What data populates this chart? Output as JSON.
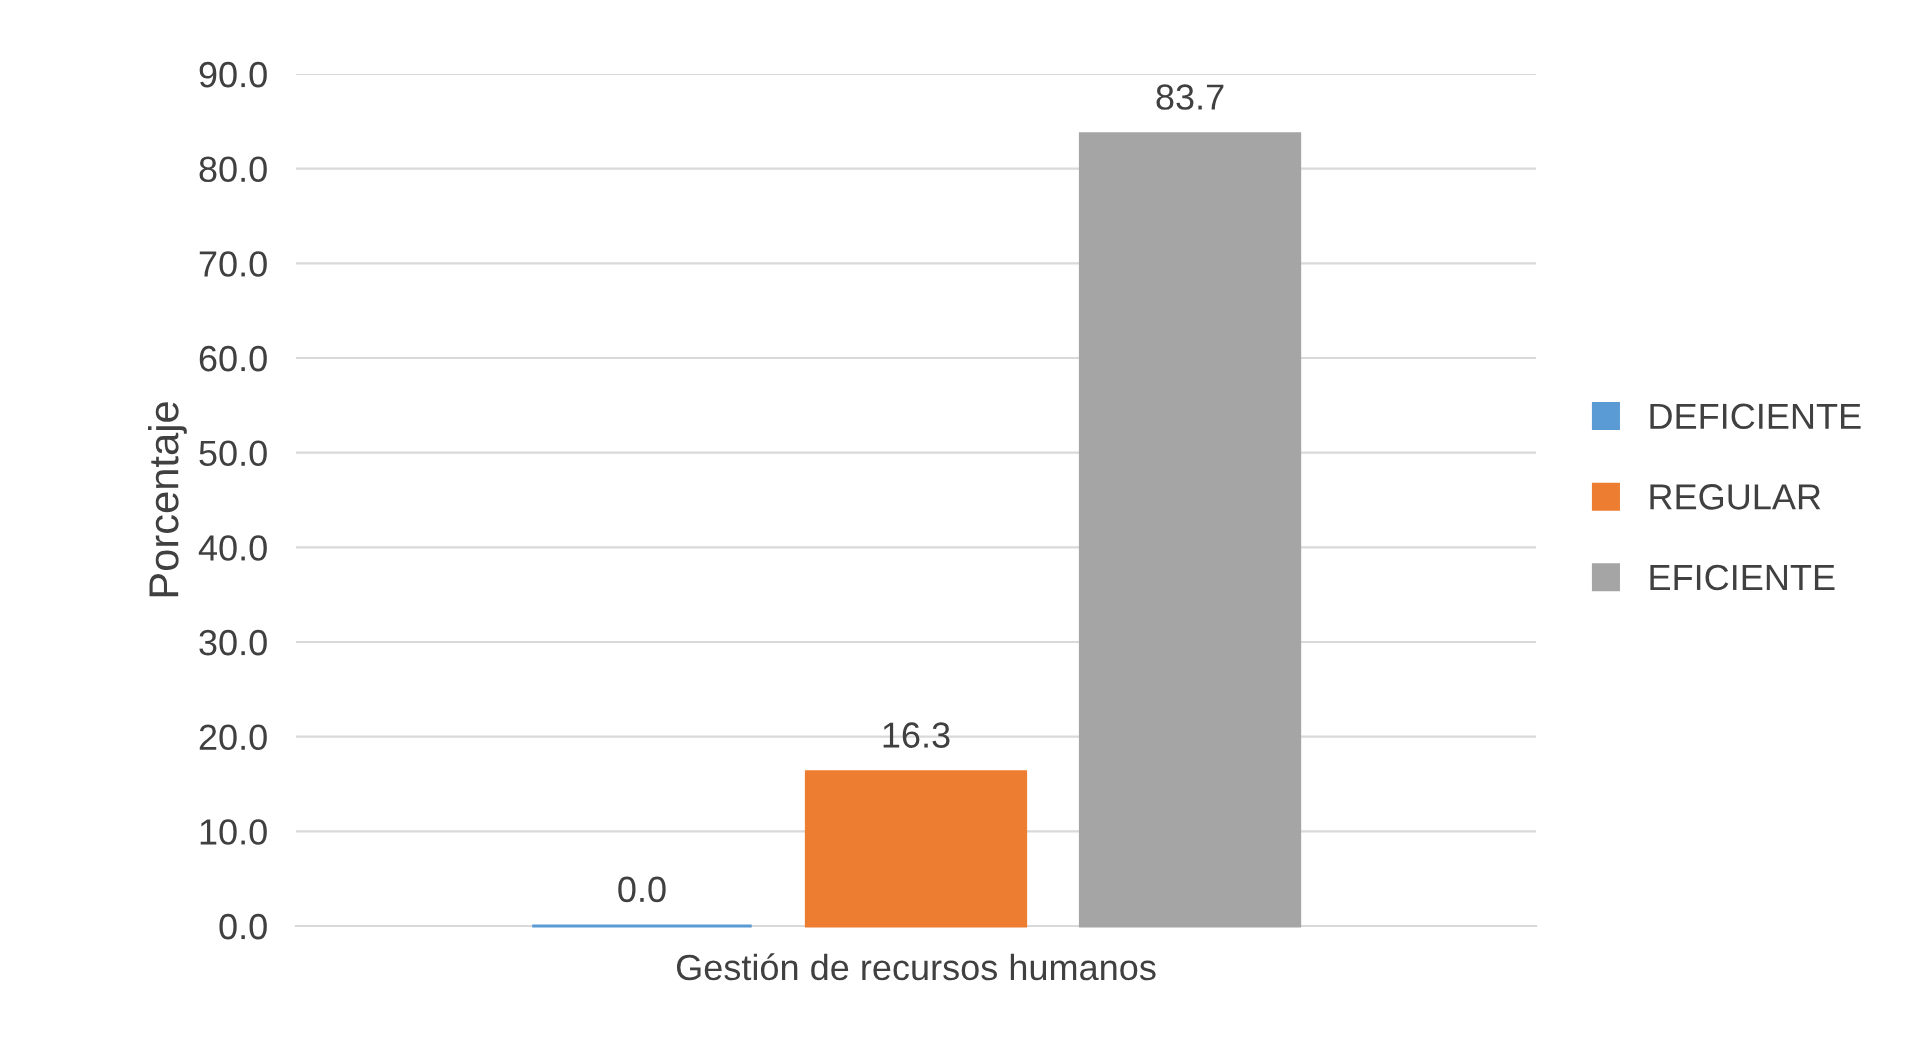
{
  "chart_data": {
    "type": "bar",
    "ylabel": "Porcentaje",
    "categories": [
      "Gestión de recursos humanos"
    ],
    "series": [
      {
        "name": "DEFICIENTE",
        "color": "#5b9bd5",
        "values": [
          0.0
        ],
        "value_labels": [
          "0.0"
        ]
      },
      {
        "name": "REGULAR",
        "color": "#ed7d31",
        "values": [
          16.3
        ],
        "value_labels": [
          "16.3"
        ]
      },
      {
        "name": "EFICIENTE",
        "color": "#a5a5a5",
        "values": [
          83.7
        ],
        "value_labels": [
          "83.7"
        ]
      }
    ],
    "ylim": [
      0,
      90
    ],
    "yticks": [
      {
        "value": 0,
        "label": "0.0"
      },
      {
        "value": 10,
        "label": "10.0"
      },
      {
        "value": 20,
        "label": "20.0"
      },
      {
        "value": 30,
        "label": "30.0"
      },
      {
        "value": 40,
        "label": "40.0"
      },
      {
        "value": 50,
        "label": "50.0"
      },
      {
        "value": 60,
        "label": "60.0"
      },
      {
        "value": 70,
        "label": "70.0"
      },
      {
        "value": 80,
        "label": "80.0"
      },
      {
        "value": 90,
        "label": "90.0"
      }
    ],
    "grid": "y",
    "legend": "right"
  }
}
